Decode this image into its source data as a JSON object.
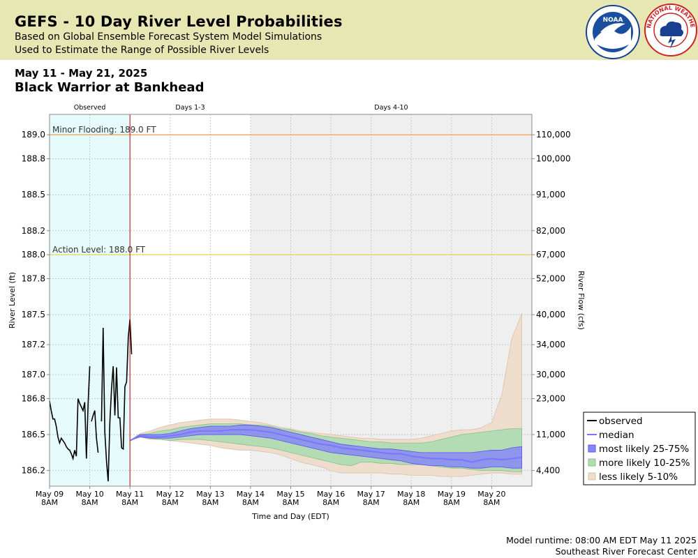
{
  "header": {
    "title": "GEFS - 10 Day River Level Probabilities",
    "subtitle1": "Based on Global Ensemble Forecast System Model Simulations",
    "subtitle2": "Used to Estimate the Range of Possible River Levels",
    "noaa_logo": "NOAA",
    "nws_logo": "NATIONAL WEATHER SERVICE"
  },
  "date_range": "May 11 - May 21, 2025",
  "location": "Black Warrior at Bankhead",
  "footer": {
    "runtime": "Model runtime: 08:00 AM EDT May 11 2025",
    "center": "Southeast River Forecast Center"
  },
  "colors": {
    "observed_bg": "#e6fcfc",
    "days4_10_bg": "#efefef",
    "minor_flood_line": "#f0a050",
    "action_line": "#f0d040",
    "now_line": "#cc0000",
    "observed": "#000000",
    "median": "#7777ff",
    "band_25_75": "#8888f4",
    "band_10_25": "#b4dcb4",
    "band_5_10": "#eedccc"
  },
  "chart_data": {
    "type": "line",
    "title": "",
    "xlabel": "Time and Day (EDT)",
    "ylabel": "River Level (ft)",
    "y2label": "River Flow (cfs)",
    "ylim": [
      186.07,
      189.17
    ],
    "x_domain_hours": [
      0,
      288
    ],
    "period_labels": [
      "Observed",
      "Days 1-3",
      "Days 4-10"
    ],
    "x_ticks": [
      {
        "hour": 0,
        "label1": "May 09",
        "label2": "8AM"
      },
      {
        "hour": 24,
        "label1": "May 10",
        "label2": "8AM"
      },
      {
        "hour": 48,
        "label1": "May 11",
        "label2": "8AM"
      },
      {
        "hour": 72,
        "label1": "May 12",
        "label2": "8AM"
      },
      {
        "hour": 96,
        "label1": "May 13",
        "label2": "8AM"
      },
      {
        "hour": 120,
        "label1": "May 14",
        "label2": "8AM"
      },
      {
        "hour": 144,
        "label1": "May 15",
        "label2": "8AM"
      },
      {
        "hour": 168,
        "label1": "May 16",
        "label2": "8AM"
      },
      {
        "hour": 192,
        "label1": "May 17",
        "label2": "8AM"
      },
      {
        "hour": 216,
        "label1": "May 18",
        "label2": "8AM"
      },
      {
        "hour": 240,
        "label1": "May 19",
        "label2": "8AM"
      },
      {
        "hour": 264,
        "label1": "May 20",
        "label2": "8AM"
      }
    ],
    "y_ticks": [
      {
        "value": 186.2,
        "label": "186.2",
        "flow": "4,400"
      },
      {
        "value": 186.5,
        "label": "186.5",
        "flow": "11,000"
      },
      {
        "value": 186.8,
        "label": "186.8",
        "flow": "23,000"
      },
      {
        "value": 187.0,
        "label": "187.0",
        "flow": "30,000"
      },
      {
        "value": 187.25,
        "label": "187.2",
        "flow": "34,000"
      },
      {
        "value": 187.5,
        "label": "187.5",
        "flow": "40,000"
      },
      {
        "value": 187.8,
        "label": "187.8",
        "flow": "52,000"
      },
      {
        "value": 188.0,
        "label": "188.0",
        "flow": "67,000"
      },
      {
        "value": 188.2,
        "label": "188.2",
        "flow": "82,000"
      },
      {
        "value": 188.5,
        "label": "188.5",
        "flow": "91,000"
      },
      {
        "value": 188.8,
        "label": "188.8",
        "flow": "100,000"
      },
      {
        "value": 189.0,
        "label": "189.0",
        "flow": "110,000"
      }
    ],
    "thresholds": [
      {
        "name": "Minor Flooding",
        "value": 189.0,
        "label": "Minor Flooding: 189.0 FT"
      },
      {
        "name": "Action Level",
        "value": 188.0,
        "label": "Action Level: 188.0 FT"
      }
    ],
    "legend": {
      "placement": "bottom-right",
      "items": [
        "observed",
        "median",
        "most likely 25-75%",
        "more likely 10-25%",
        "less likely 5-10%"
      ]
    },
    "observed": {
      "name": "observed",
      "segments": [
        [
          [
            0,
            186.78
          ],
          [
            1,
            186.7
          ],
          [
            2,
            186.63
          ],
          [
            3,
            186.63
          ],
          [
            4,
            186.57
          ],
          [
            5,
            186.48
          ],
          [
            6,
            186.43
          ],
          [
            7,
            186.47
          ],
          [
            8,
            186.45
          ],
          [
            9,
            186.43
          ],
          [
            10,
            186.4
          ],
          [
            11,
            186.38
          ],
          [
            12,
            186.37
          ],
          [
            13,
            186.34
          ],
          [
            14,
            186.3
          ],
          [
            15,
            186.37
          ],
          [
            16,
            186.32
          ],
          [
            17,
            186.8
          ],
          [
            18,
            186.76
          ],
          [
            19,
            186.73
          ],
          [
            20,
            186.7
          ],
          [
            21,
            186.77
          ],
          [
            22,
            186.3
          ],
          [
            23,
            186.75
          ],
          [
            24,
            187.07
          ]
        ],
        [
          [
            25,
            186.61
          ],
          [
            26,
            186.66
          ],
          [
            27,
            186.7
          ],
          [
            28,
            186.47
          ],
          [
            29,
            186.35
          ]
        ],
        [
          [
            31,
            186.61
          ],
          [
            32,
            187.39
          ],
          [
            33,
            186.52
          ],
          [
            34,
            186.28
          ],
          [
            35,
            186.11
          ],
          [
            36,
            186.6
          ],
          [
            37,
            186.88
          ],
          [
            38,
            187.07
          ],
          [
            39,
            186.66
          ],
          [
            40,
            187.06
          ],
          [
            41,
            186.64
          ],
          [
            42,
            186.64
          ],
          [
            43,
            186.39
          ],
          [
            44,
            186.38
          ],
          [
            45,
            186.9
          ],
          [
            46,
            186.94
          ],
          [
            47,
            187.31
          ],
          [
            48,
            187.46
          ],
          [
            49,
            187.17
          ]
        ]
      ]
    },
    "forecast_hours": [
      48,
      54,
      60,
      66,
      72,
      78,
      84,
      90,
      96,
      102,
      108,
      114,
      120,
      126,
      132,
      138,
      144,
      150,
      156,
      162,
      168,
      174,
      180,
      186,
      192,
      198,
      204,
      210,
      216,
      222,
      228,
      234,
      240,
      246,
      252,
      258,
      264,
      270,
      276,
      282
    ],
    "median": [
      186.45,
      186.49,
      186.48,
      186.48,
      186.49,
      186.5,
      186.52,
      186.53,
      186.53,
      186.53,
      186.54,
      186.54,
      186.54,
      186.53,
      186.52,
      186.5,
      186.48,
      186.46,
      186.44,
      186.42,
      186.41,
      186.39,
      186.38,
      186.37,
      186.36,
      186.35,
      186.34,
      186.34,
      186.32,
      186.31,
      186.3,
      186.3,
      186.29,
      186.29,
      186.27,
      186.29,
      186.3,
      186.29,
      186.3,
      186.31
    ],
    "p25": [
      186.45,
      186.48,
      186.47,
      186.47,
      186.47,
      186.48,
      186.49,
      186.5,
      186.5,
      186.5,
      186.5,
      186.5,
      186.49,
      186.48,
      186.47,
      186.45,
      186.43,
      186.41,
      186.39,
      186.37,
      186.35,
      186.34,
      186.33,
      186.32,
      186.31,
      186.3,
      186.29,
      186.28,
      186.26,
      186.25,
      186.24,
      186.24,
      186.23,
      186.23,
      186.22,
      186.22,
      186.23,
      186.23,
      186.22,
      186.22
    ],
    "p75": [
      186.45,
      186.5,
      186.5,
      186.5,
      186.51,
      186.53,
      186.55,
      186.56,
      186.57,
      186.57,
      186.57,
      186.58,
      186.58,
      186.57,
      186.56,
      186.54,
      186.52,
      186.5,
      186.48,
      186.46,
      186.44,
      186.42,
      186.41,
      186.4,
      186.39,
      186.38,
      186.38,
      186.37,
      186.36,
      186.35,
      186.35,
      186.35,
      186.35,
      186.35,
      186.35,
      186.36,
      186.37,
      186.37,
      186.39,
      186.4
    ],
    "p10": [
      186.45,
      186.48,
      186.47,
      186.46,
      186.45,
      186.46,
      186.46,
      186.46,
      186.45,
      186.44,
      186.43,
      186.42,
      186.41,
      186.4,
      186.39,
      186.37,
      186.35,
      186.33,
      186.31,
      186.29,
      186.27,
      186.25,
      186.24,
      186.27,
      186.27,
      186.26,
      186.26,
      186.25,
      186.25,
      186.25,
      186.24,
      186.23,
      186.22,
      186.22,
      186.21,
      186.2,
      186.2,
      186.2,
      186.19,
      186.19
    ],
    "p90": [
      186.45,
      186.5,
      186.51,
      186.53,
      186.54,
      186.56,
      186.57,
      186.58,
      186.59,
      186.59,
      186.59,
      186.59,
      186.58,
      186.58,
      186.57,
      186.55,
      186.54,
      186.52,
      186.51,
      186.49,
      186.48,
      186.47,
      186.46,
      186.45,
      186.44,
      186.44,
      186.43,
      186.43,
      186.43,
      186.43,
      186.44,
      186.46,
      186.48,
      186.5,
      186.51,
      186.52,
      186.53,
      186.54,
      186.55,
      186.55
    ],
    "p5": [
      186.45,
      186.48,
      186.46,
      186.46,
      186.45,
      186.44,
      186.43,
      186.42,
      186.41,
      186.39,
      186.38,
      186.37,
      186.37,
      186.36,
      186.35,
      186.33,
      186.3,
      186.27,
      186.25,
      186.23,
      186.2,
      186.18,
      186.18,
      186.18,
      186.18,
      186.18,
      186.17,
      186.17,
      186.16,
      186.16,
      186.16,
      186.15,
      186.15,
      186.15,
      186.16,
      186.17,
      186.18,
      186.18,
      186.17,
      186.17
    ],
    "p95": [
      186.45,
      186.51,
      186.53,
      186.56,
      186.58,
      186.6,
      186.61,
      186.62,
      186.63,
      186.63,
      186.63,
      186.62,
      186.61,
      186.6,
      186.58,
      186.56,
      186.55,
      186.53,
      186.52,
      186.51,
      186.5,
      186.49,
      186.48,
      186.47,
      186.47,
      186.46,
      186.46,
      186.46,
      186.46,
      186.47,
      186.49,
      186.51,
      186.53,
      186.54,
      186.54,
      186.56,
      186.6,
      186.83,
      187.3,
      187.51
    ]
  }
}
